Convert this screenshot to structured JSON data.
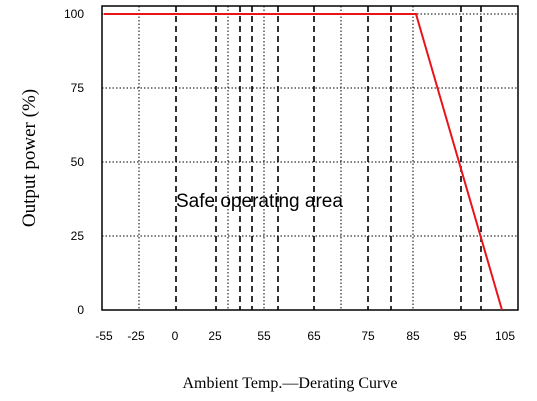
{
  "chart_data": {
    "type": "line",
    "title": "",
    "xlabel": "Ambient Temp.—Derating Curve",
    "ylabel": "Output power (%)",
    "x_ticks": [
      "-55",
      "-25",
      "0",
      "25",
      "55",
      "65",
      "75",
      "85",
      "95",
      "105"
    ],
    "y_ticks": [
      "0",
      "25",
      "50",
      "75",
      "100"
    ],
    "ylim": [
      0,
      100
    ],
    "grid": true,
    "annotation": "Safe operating area",
    "series": [
      {
        "color": "#e8141b",
        "points": [
          {
            "x": "-55",
            "y": 100
          },
          {
            "x": "85",
            "y": 100
          },
          {
            "x": "105",
            "y": 0
          }
        ]
      }
    ]
  }
}
